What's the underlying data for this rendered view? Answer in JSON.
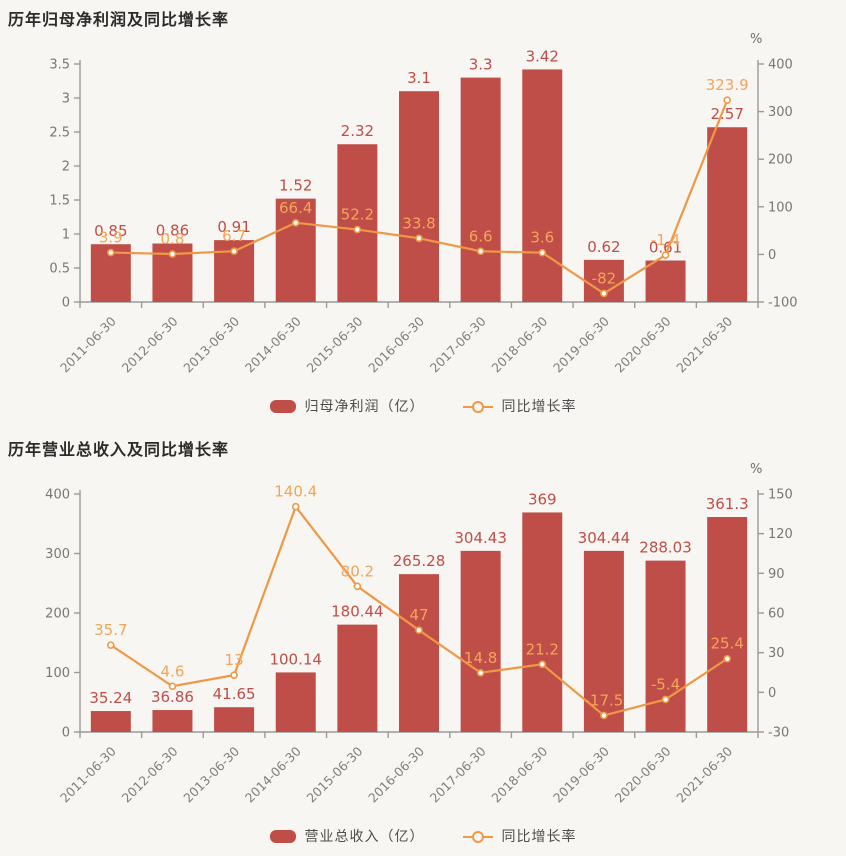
{
  "page_background": "#f7f6f2",
  "colors": {
    "bar": "#c04e48",
    "bar_label": "#c04e48",
    "line": "#ef9845",
    "line_label": "#f3a55a",
    "axis": "#9a9a9a",
    "tick_label": "#777777",
    "x_label": "#7f7f7f",
    "marker_fill": "#ffffff"
  },
  "chart_data": [
    {
      "type": "bar",
      "title": "历年归母净利润及同比增长率",
      "categories": [
        "2011-06-30",
        "2012-06-30",
        "2013-06-30",
        "2014-06-30",
        "2015-06-30",
        "2016-06-30",
        "2017-06-30",
        "2018-06-30",
        "2019-06-30",
        "2020-06-30",
        "2021-06-30"
      ],
      "series": [
        {
          "name": "归母净利润（亿）",
          "type": "bar",
          "axis": "left",
          "values": [
            0.85,
            0.86,
            0.91,
            1.52,
            2.32,
            3.1,
            3.3,
            3.42,
            0.62,
            0.61,
            2.57
          ]
        },
        {
          "name": "同比增长率",
          "type": "line",
          "axis": "right",
          "values": [
            3.9,
            0.8,
            6.7,
            66.4,
            52.2,
            33.8,
            6.6,
            3.6,
            -82,
            -1.4,
            323.9
          ]
        }
      ],
      "left_axis": {
        "min": 0,
        "max": 3.5,
        "ticks": [
          0,
          0.5,
          1,
          1.5,
          2,
          2.5,
          3,
          3.5
        ]
      },
      "right_axis": {
        "min": -100,
        "max": 400,
        "ticks": [
          -100,
          0,
          100,
          200,
          300,
          400
        ],
        "unit": "%"
      },
      "legend": [
        "归母净利润（亿）",
        "同比增长率"
      ],
      "grid": false,
      "legend_position": "bottom"
    },
    {
      "type": "bar",
      "title": "历年营业总收入及同比增长率",
      "categories": [
        "2011-06-30",
        "2012-06-30",
        "2013-06-30",
        "2014-06-30",
        "2015-06-30",
        "2016-06-30",
        "2017-06-30",
        "2018-06-30",
        "2019-06-30",
        "2020-06-30",
        "2021-06-30"
      ],
      "series": [
        {
          "name": "营业总收入（亿）",
          "type": "bar",
          "axis": "left",
          "values": [
            35.24,
            36.86,
            41.65,
            100.14,
            180.44,
            265.28,
            304.43,
            369,
            304.44,
            288.03,
            361.3
          ]
        },
        {
          "name": "同比增长率",
          "type": "line",
          "axis": "right",
          "values": [
            35.7,
            4.6,
            13,
            140.4,
            80.2,
            47,
            14.8,
            21.2,
            -17.5,
            -5.4,
            25.4
          ]
        }
      ],
      "left_axis": {
        "min": 0,
        "max": 400,
        "ticks": [
          0,
          100,
          200,
          300,
          400
        ]
      },
      "right_axis": {
        "min": -30,
        "max": 150,
        "ticks": [
          -30,
          0,
          30,
          60,
          90,
          120,
          150
        ],
        "unit": "%"
      },
      "legend": [
        "营业总收入（亿）",
        "同比增长率"
      ],
      "grid": false,
      "legend_position": "bottom"
    }
  ]
}
